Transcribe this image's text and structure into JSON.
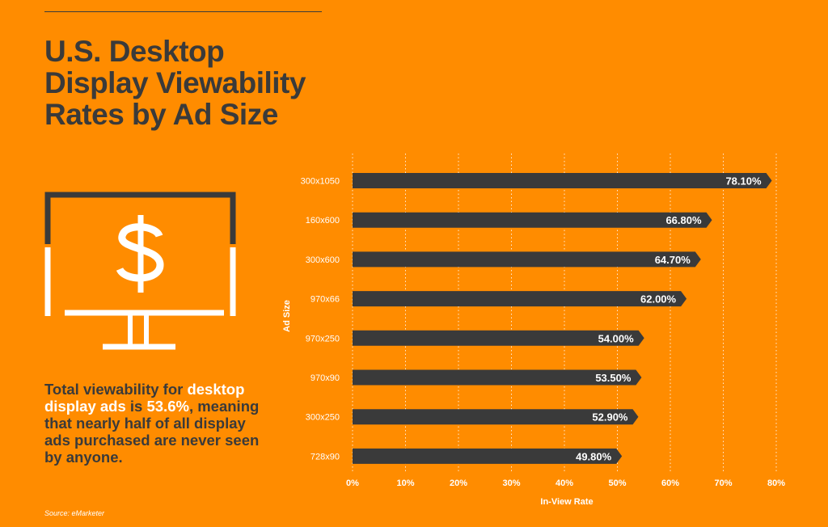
{
  "title_lines": [
    "U.S. Desktop",
    "Display Viewability",
    "Rates by Ad Size"
  ],
  "summary": {
    "part1": "Total viewability for ",
    "highlight1": "desktop display ads",
    "part2": " is ",
    "highlight2": "53.6%",
    "part3": ", meaning that nearly half of all display ads purchased are never seen by anyone."
  },
  "source": "Source: eMarketer",
  "icon": "monitor-dollar-icon",
  "colors": {
    "background": "#FF8C00",
    "bar": "#3A3A3A",
    "dark_text": "#3A3A3A",
    "highlight": "#FFFFFF"
  },
  "chart_data": {
    "type": "bar",
    "orientation": "horizontal",
    "categories": [
      "300x1050",
      "160x600",
      "300x600",
      "970x66",
      "970x250",
      "970x90",
      "300x250",
      "728x90"
    ],
    "values": [
      78.1,
      66.8,
      64.7,
      62.0,
      54.0,
      53.5,
      52.9,
      49.8
    ],
    "value_labels": [
      "78.10%",
      "66.80%",
      "64.70%",
      "62.00%",
      "54.00%",
      "53.50%",
      "52.90%",
      "49.80%"
    ],
    "xlabel": "In-View Rate",
    "ylabel": "Ad Size",
    "xlim": [
      0,
      80
    ],
    "xticks": [
      "0%",
      "10%",
      "20%",
      "30%",
      "40%",
      "50%",
      "60%",
      "70%",
      "80%"
    ],
    "grid": "vertical-dotted"
  }
}
